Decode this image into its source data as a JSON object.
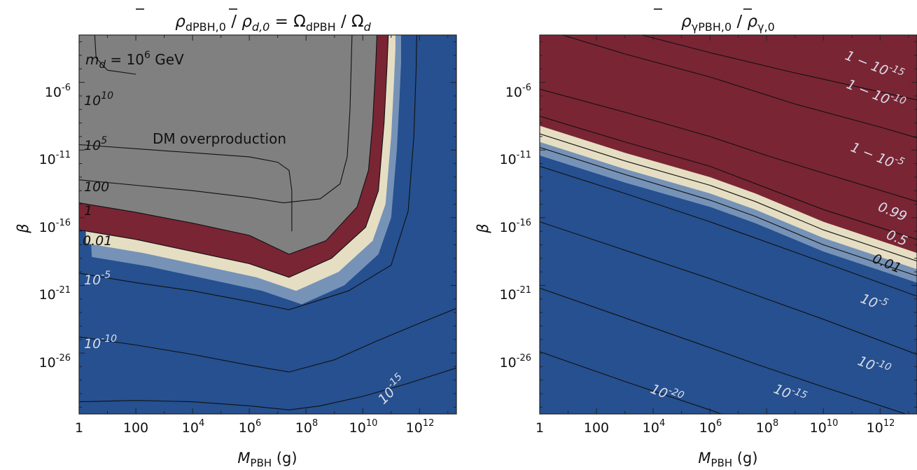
{
  "chart_data": [
    {
      "type": "heatmap",
      "title_parts": {
        "rho1": "ρ",
        "sub1": "dPBH,0",
        "slash1": " / ",
        "rho2": "ρ",
        "sub2": "d,0",
        "eq": " = Ω",
        "sub3": "dPBH",
        "slash2": " / Ω",
        "sub4": "d"
      },
      "xlabel_main": "M",
      "xlabel_sub": "PBH",
      "xlabel_unit": " (g)",
      "ylabel": "β",
      "x_log10_range": [
        0,
        13.3
      ],
      "y_log10_range": [
        -30.5,
        -2.5
      ],
      "x_ticks": [
        {
          "log": 0,
          "base": "1",
          "exp": ""
        },
        {
          "log": 2,
          "base": "100",
          "exp": ""
        },
        {
          "log": 4,
          "base": "10",
          "exp": "4"
        },
        {
          "log": 6,
          "base": "10",
          "exp": "6"
        },
        {
          "log": 8,
          "base": "10",
          "exp": "8"
        },
        {
          "log": 10,
          "base": "10",
          "exp": "10"
        },
        {
          "log": 12,
          "base": "10",
          "exp": "12"
        }
      ],
      "y_ticks": [
        {
          "log": -6,
          "base": "10",
          "exp": "-6"
        },
        {
          "log": -11,
          "base": "10",
          "exp": "-11"
        },
        {
          "log": -16,
          "base": "10",
          "exp": "-16"
        },
        {
          "log": -21,
          "base": "10",
          "exp": "-21"
        },
        {
          "log": -26,
          "base": "10",
          "exp": "-26"
        }
      ],
      "colors": {
        "low": "#26508f",
        "mid": "#f2e7c4",
        "high": "#7a2534",
        "overproduction": "#808080"
      },
      "annotation": "DM overproduction",
      "mass_label": {
        "prefix": "m",
        "sub": "d",
        "mid": " = 10",
        "exp": "6",
        "unit": " GeV"
      },
      "contours": [
        {
          "label": "10",
          "label_exp": "10",
          "points": [
            [
              0.55,
              -2.5
            ],
            [
              0.6,
              -4.2
            ],
            [
              1.0,
              -5.1
            ],
            [
              2.0,
              -5.4
            ]
          ]
        },
        {
          "label": "10",
          "label_exp": "5",
          "points": [
            [
              0,
              -10.6
            ],
            [
              2,
              -10.9
            ],
            [
              4,
              -11.2
            ],
            [
              6,
              -11.5
            ],
            [
              7.0,
              -11.9
            ],
            [
              7.4,
              -12.5
            ],
            [
              7.5,
              -14
            ],
            [
              7.5,
              -16
            ],
            [
              7.5,
              -17
            ]
          ]
        },
        {
          "label": "100",
          "label_exp": "",
          "points": [
            [
              0,
              -13.2
            ],
            [
              2,
              -13.6
            ],
            [
              4,
              -14
            ],
            [
              6,
              -14.5
            ],
            [
              7.2,
              -14.9
            ],
            [
              8.5,
              -14.6
            ],
            [
              9.2,
              -13.5
            ],
            [
              9.45,
              -11.5
            ],
            [
              9.55,
              -8
            ],
            [
              9.6,
              -4
            ],
            [
              9.62,
              -2.5
            ]
          ]
        },
        {
          "label": "1",
          "label_exp": "",
          "points": [
            [
              0,
              -14.9
            ],
            [
              2,
              -15.6
            ],
            [
              4,
              -16.4
            ],
            [
              6,
              -17.3
            ],
            [
              7.4,
              -18.7
            ],
            [
              8.7,
              -17.7
            ],
            [
              9.8,
              -15.2
            ],
            [
              10.2,
              -12.5
            ],
            [
              10.35,
              -9
            ],
            [
              10.45,
              -5
            ],
            [
              10.5,
              -2.5
            ]
          ]
        },
        {
          "label": "0.01",
          "label_exp": "",
          "points": [
            [
              0,
              -16.9
            ],
            [
              2,
              -17.6
            ],
            [
              4,
              -18.5
            ],
            [
              6,
              -19.4
            ],
            [
              7.4,
              -20.4
            ],
            [
              8.9,
              -19
            ],
            [
              10.1,
              -16.7
            ],
            [
              10.55,
              -14
            ],
            [
              10.75,
              -9
            ],
            [
              10.85,
              -5
            ],
            [
              10.9,
              -2.5
            ]
          ]
        },
        {
          "label": "10",
          "label_exp": "-5",
          "points": [
            [
              0,
              -20.1
            ],
            [
              2,
              -20.8
            ],
            [
              4,
              -21.4
            ],
            [
              6,
              -22.2
            ],
            [
              7.4,
              -22.8
            ],
            [
              9.5,
              -21.4
            ],
            [
              11.0,
              -19.5
            ],
            [
              11.6,
              -15.5
            ],
            [
              11.8,
              -10
            ],
            [
              11.88,
              -5
            ],
            [
              11.9,
              -2.5
            ]
          ]
        },
        {
          "label": "10",
          "label_exp": "-10",
          "points": [
            [
              0,
              -24.8
            ],
            [
              2,
              -25.4
            ],
            [
              4,
              -26.1
            ],
            [
              6,
              -26.9
            ],
            [
              7.4,
              -27.4
            ],
            [
              9,
              -26.5
            ],
            [
              10.5,
              -25.1
            ],
            [
              12,
              -23.8
            ],
            [
              13.3,
              -22.7
            ]
          ]
        },
        {
          "label": "10",
          "label_exp": "-15",
          "points": [
            [
              0,
              -29.6
            ],
            [
              2,
              -29.5
            ],
            [
              4,
              -29.6
            ],
            [
              6,
              -29.9
            ],
            [
              7.4,
              -30.2
            ],
            [
              8.5,
              -29.9
            ],
            [
              10,
              -29.2
            ],
            [
              11.5,
              -28.3
            ],
            [
              13.3,
              -27.1
            ]
          ]
        }
      ]
    },
    {
      "type": "heatmap",
      "title_parts": {
        "rho1": "ρ",
        "sub1": "γPBH,0",
        "slash1": " / ",
        "rho2": "ρ",
        "sub2": "γ,0"
      },
      "xlabel_main": "M",
      "xlabel_sub": "PBH",
      "xlabel_unit": " (g)",
      "ylabel": "β",
      "x_log10_range": [
        0,
        13.3
      ],
      "y_log10_range": [
        -30.5,
        -2.5
      ],
      "x_ticks": [
        {
          "log": 0,
          "base": "1",
          "exp": ""
        },
        {
          "log": 2,
          "base": "100",
          "exp": ""
        },
        {
          "log": 4,
          "base": "10",
          "exp": "4"
        },
        {
          "log": 6,
          "base": "10",
          "exp": "6"
        },
        {
          "log": 8,
          "base": "10",
          "exp": "8"
        },
        {
          "log": 10,
          "base": "10",
          "exp": "10"
        },
        {
          "log": 12,
          "base": "10",
          "exp": "12"
        }
      ],
      "y_ticks": [
        {
          "log": -6,
          "base": "10",
          "exp": "-6"
        },
        {
          "log": -11,
          "base": "10",
          "exp": "-11"
        },
        {
          "log": -16,
          "base": "10",
          "exp": "-16"
        },
        {
          "log": -21,
          "base": "10",
          "exp": "-21"
        },
        {
          "log": -26,
          "base": "10",
          "exp": "-26"
        }
      ],
      "colors": {
        "low": "#26508f",
        "mid": "#f2e7c4",
        "high": "#7a2534"
      },
      "contours": [
        {
          "label": "1 − 10",
          "label_exp": "-15",
          "points": [
            [
              3.6,
              -2.5
            ],
            [
              6,
              -3.8
            ],
            [
              9,
              -5.3
            ],
            [
              12,
              -6.7
            ],
            [
              13.3,
              -7.3
            ]
          ]
        },
        {
          "label": "1 − 10",
          "label_exp": "-10",
          "points": [
            [
              0.8,
              -2.5
            ],
            [
              3,
              -3.9
            ],
            [
              6,
              -5.6
            ],
            [
              9,
              -7.6
            ],
            [
              12,
              -9.3
            ],
            [
              13.3,
              -10.1
            ]
          ]
        },
        {
          "label": "1 − 10",
          "label_exp": "-5",
          "points": [
            [
              0,
              -6.5
            ],
            [
              3,
              -8.2
            ],
            [
              6,
              -10
            ],
            [
              8,
              -11.4
            ],
            [
              10,
              -12.7
            ],
            [
              13.3,
              -14.8
            ]
          ]
        },
        {
          "label": "0.99",
          "label_exp": "",
          "points": [
            [
              0,
              -8.5
            ],
            [
              3,
              -10.4
            ],
            [
              6,
              -12.2
            ],
            [
              8,
              -13.8
            ],
            [
              10,
              -15.4
            ],
            [
              13.3,
              -17.6
            ]
          ]
        },
        {
          "label": "0.5",
          "label_exp": "",
          "points": [
            [
              0,
              -9.8
            ],
            [
              3,
              -11.8
            ],
            [
              6,
              -13.6
            ],
            [
              7.6,
              -14.8
            ],
            [
              10,
              -16.9
            ],
            [
              13.3,
              -19.2
            ]
          ]
        },
        {
          "label": "0.01",
          "label_exp": "",
          "points": [
            [
              0,
              -10.8
            ],
            [
              3,
              -12.8
            ],
            [
              6,
              -14.7
            ],
            [
              7.6,
              -15.9
            ],
            [
              10,
              -18.0
            ],
            [
              13.3,
              -20.3
            ]
          ]
        },
        {
          "label": "10",
          "label_exp": "-5",
          "points": [
            [
              0,
              -12.2
            ],
            [
              3,
              -14.2
            ],
            [
              6,
              -16.3
            ],
            [
              7.6,
              -17.5
            ],
            [
              10,
              -19.3
            ],
            [
              13.3,
              -21.8
            ]
          ]
        },
        {
          "label": "10",
          "label_exp": "-10",
          "points": [
            [
              0,
              -16.3
            ],
            [
              3,
              -18.4
            ],
            [
              6,
              -20.5
            ],
            [
              7.6,
              -21.7
            ],
            [
              10,
              -23.5
            ],
            [
              13.3,
              -26.1
            ]
          ]
        },
        {
          "label": "10",
          "label_exp": "-15",
          "points": [
            [
              0,
              -21.2
            ],
            [
              3,
              -23.4
            ],
            [
              6,
              -25.6
            ],
            [
              7.6,
              -26.8
            ],
            [
              10,
              -28.5
            ],
            [
              12.9,
              -30.5
            ]
          ]
        },
        {
          "label": "10",
          "label_exp": "-20",
          "points": [
            [
              0,
              -25.9
            ],
            [
              3,
              -28.1
            ],
            [
              6,
              -30.2
            ],
            [
              6.4,
              -30.5
            ]
          ]
        }
      ]
    }
  ]
}
